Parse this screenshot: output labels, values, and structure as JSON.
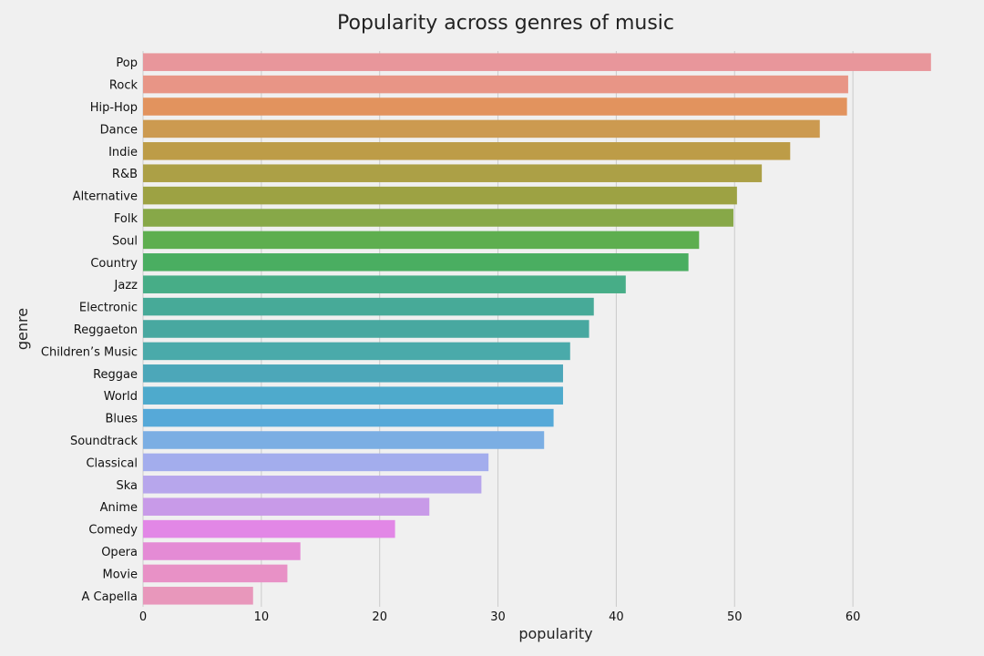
{
  "chart_data": {
    "type": "bar",
    "orientation": "horizontal",
    "title": "Popularity across genres of music",
    "xlabel": "popularity",
    "ylabel": "genre",
    "xlim": [
      0,
      68
    ],
    "xticks": [
      0,
      10,
      20,
      30,
      40,
      50,
      60
    ],
    "grid": "vertical",
    "background": "#f0f0f0",
    "categories": [
      "Pop",
      "Rock",
      "Hip-Hop",
      "Dance",
      "Indie",
      "R&B",
      "Alternative",
      "Folk",
      "Soul",
      "Country",
      "Jazz",
      "Electronic",
      "Reggaeton",
      "Children’s Music",
      "Reggae",
      "World",
      "Blues",
      "Soundtrack",
      "Classical",
      "Ska",
      "Anime",
      "Comedy",
      "Opera",
      "Movie",
      "A Capella"
    ],
    "values": [
      66.6,
      59.6,
      59.5,
      57.2,
      54.7,
      52.3,
      50.2,
      49.9,
      47.0,
      46.1,
      40.8,
      38.1,
      37.7,
      36.1,
      35.5,
      35.5,
      34.7,
      33.9,
      29.2,
      28.6,
      24.2,
      21.3,
      13.3,
      12.2,
      9.3
    ],
    "colors": [
      "#e8969b",
      "#e89586",
      "#e2935e",
      "#cc9a50",
      "#bd9c47",
      "#aca046",
      "#9da243",
      "#87a848",
      "#5eae4f",
      "#4aae61",
      "#47ad87",
      "#47aa98",
      "#48a8a0",
      "#4aaaaa",
      "#4ca7b9",
      "#4eaacc",
      "#56a9d8",
      "#7baee3",
      "#a3aded",
      "#b7a6ec",
      "#c89ae8",
      "#e287e6",
      "#e48bd5",
      "#e891c6",
      "#e897bb"
    ]
  }
}
